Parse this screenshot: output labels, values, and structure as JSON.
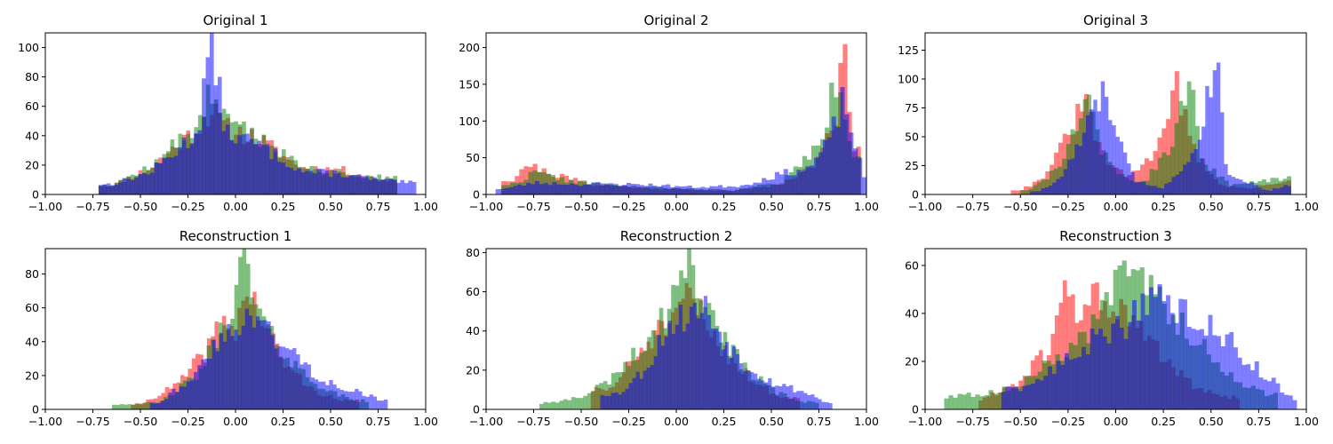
{
  "figure": {
    "colors": {
      "red": "#ff0000",
      "green": "#008000",
      "blue": "#0000ff",
      "alpha": 0.5
    }
  },
  "chart_data": [
    {
      "type": "histogram",
      "title": "Original 1",
      "xlim": [
        -1,
        1
      ],
      "ylim": [
        0,
        110
      ],
      "xticks": [
        "−1.00",
        "−0.75",
        "−0.50",
        "−0.25",
        "0.00",
        "0.25",
        "0.50",
        "0.75",
        "1.00"
      ],
      "yticks": [
        0,
        20,
        40,
        60,
        80,
        100
      ],
      "series": [
        {
          "color": "red",
          "peaks": [
            [
              -0.65,
              6
            ],
            [
              -0.45,
              18
            ],
            [
              -0.2,
              45
            ],
            [
              -0.13,
              58
            ],
            [
              -0.05,
              45
            ],
            [
              0.12,
              38
            ],
            [
              0.35,
              18
            ],
            [
              0.55,
              17
            ],
            [
              0.75,
              10
            ]
          ],
          "range": [
            -0.72,
            0.85
          ],
          "bins": 75,
          "seed": 11
        },
        {
          "color": "green",
          "peaks": [
            [
              -0.65,
              7
            ],
            [
              -0.45,
              18
            ],
            [
              -0.2,
              48
            ],
            [
              -0.13,
              72
            ],
            [
              -0.05,
              48
            ],
            [
              0.12,
              40
            ],
            [
              0.35,
              18
            ],
            [
              0.55,
              15
            ],
            [
              0.75,
              12
            ]
          ],
          "range": [
            -0.72,
            0.85
          ],
          "bins": 75,
          "seed": 12
        },
        {
          "color": "blue",
          "peaks": [
            [
              -0.65,
              7
            ],
            [
              -0.45,
              15
            ],
            [
              -0.2,
              42
            ],
            [
              -0.13,
              105
            ],
            [
              -0.05,
              42
            ],
            [
              0.12,
              34
            ],
            [
              0.35,
              16
            ],
            [
              0.55,
              14
            ],
            [
              0.75,
              10
            ],
            [
              0.9,
              8
            ]
          ],
          "range": [
            -0.72,
            0.95
          ],
          "bins": 80,
          "seed": 13
        }
      ]
    },
    {
      "type": "histogram",
      "title": "Original 2",
      "xlim": [
        -1,
        1
      ],
      "ylim": [
        0,
        220
      ],
      "xticks": [
        "−1.00",
        "−0.75",
        "−0.50",
        "−0.25",
        "0.00",
        "0.25",
        "0.50",
        "0.75",
        "1.00"
      ],
      "yticks": [
        0,
        50,
        100,
        150,
        200
      ],
      "series": [
        {
          "color": "red",
          "peaks": [
            [
              -0.85,
              20
            ],
            [
              -0.8,
              42
            ],
            [
              -0.65,
              28
            ],
            [
              -0.45,
              14
            ],
            [
              -0.1,
              8
            ],
            [
              0.3,
              5
            ],
            [
              0.55,
              14
            ],
            [
              0.75,
              45
            ],
            [
              0.85,
              120
            ],
            [
              0.88,
              210
            ],
            [
              0.93,
              70
            ]
          ],
          "range": [
            -0.92,
            0.97
          ],
          "bins": 80,
          "seed": 21
        },
        {
          "color": "green",
          "peaks": [
            [
              -0.85,
              14
            ],
            [
              -0.75,
              30
            ],
            [
              -0.55,
              18
            ],
            [
              -0.3,
              12
            ],
            [
              0.0,
              8
            ],
            [
              0.3,
              6
            ],
            [
              0.55,
              16
            ],
            [
              0.75,
              65
            ],
            [
              0.82,
              135
            ],
            [
              0.86,
              150
            ],
            [
              0.93,
              60
            ]
          ],
          "range": [
            -0.92,
            0.97
          ],
          "bins": 80,
          "seed": 22
        },
        {
          "color": "blue",
          "peaks": [
            [
              -0.9,
              8
            ],
            [
              -0.75,
              16
            ],
            [
              -0.5,
              14
            ],
            [
              -0.2,
              14
            ],
            [
              0.1,
              10
            ],
            [
              0.35,
              12
            ],
            [
              0.55,
              28
            ],
            [
              0.7,
              36
            ],
            [
              0.8,
              70
            ],
            [
              0.88,
              130
            ],
            [
              0.95,
              60
            ],
            [
              1.0,
              8
            ]
          ],
          "range": [
            -0.95,
            1.0
          ],
          "bins": 85,
          "seed": 23
        }
      ]
    },
    {
      "type": "histogram",
      "title": "Original 3",
      "xlim": [
        -1,
        1
      ],
      "ylim": [
        0,
        140
      ],
      "xticks": [
        "−1.00",
        "−0.75",
        "−0.50",
        "−0.25",
        "0.00",
        "0.25",
        "0.50",
        "0.75",
        "1.00"
      ],
      "yticks": [
        0,
        25,
        50,
        75,
        100,
        125
      ],
      "series": [
        {
          "color": "red",
          "peaks": [
            [
              -0.5,
              4
            ],
            [
              -0.4,
              12
            ],
            [
              -0.3,
              35
            ],
            [
              -0.22,
              62
            ],
            [
              -0.15,
              80
            ],
            [
              -0.08,
              35
            ],
            [
              0.05,
              15
            ],
            [
              0.18,
              30
            ],
            [
              0.25,
              62
            ],
            [
              0.32,
              96
            ],
            [
              0.4,
              40
            ],
            [
              0.55,
              8
            ],
            [
              0.7,
              5
            ],
            [
              0.88,
              12
            ]
          ],
          "range": [
            -0.55,
            0.92
          ],
          "bins": 65,
          "seed": 31
        },
        {
          "color": "green",
          "peaks": [
            [
              -0.45,
              4
            ],
            [
              -0.3,
              22
            ],
            [
              -0.2,
              60
            ],
            [
              -0.15,
              92
            ],
            [
              -0.1,
              50
            ],
            [
              0.0,
              18
            ],
            [
              0.15,
              10
            ],
            [
              0.28,
              40
            ],
            [
              0.35,
              80
            ],
            [
              0.4,
              98
            ],
            [
              0.45,
              30
            ],
            [
              0.6,
              8
            ],
            [
              0.88,
              14
            ]
          ],
          "range": [
            -0.5,
            0.92
          ],
          "bins": 65,
          "seed": 32
        },
        {
          "color": "blue",
          "peaks": [
            [
              -0.4,
              3
            ],
            [
              -0.3,
              12
            ],
            [
              -0.2,
              40
            ],
            [
              -0.12,
              70
            ],
            [
              -0.05,
              91
            ],
            [
              0.0,
              52
            ],
            [
              0.1,
              12
            ],
            [
              0.25,
              6
            ],
            [
              0.35,
              22
            ],
            [
              0.45,
              58
            ],
            [
              0.5,
              98
            ],
            [
              0.53,
              134
            ],
            [
              0.58,
              20
            ],
            [
              0.8,
              3
            ],
            [
              0.9,
              8
            ]
          ],
          "range": [
            -0.45,
            0.92
          ],
          "bins": 70,
          "seed": 33
        }
      ]
    },
    {
      "type": "histogram",
      "title": "Reconstruction 1",
      "xlim": [
        -1,
        1
      ],
      "ylim": [
        0,
        95
      ],
      "xticks": [
        "−1.00",
        "−0.75",
        "−0.50",
        "−0.25",
        "0.00",
        "0.25",
        "0.50",
        "0.75",
        "1.00"
      ],
      "yticks": [
        0,
        20,
        40,
        60,
        80
      ],
      "series": [
        {
          "color": "red",
          "peaks": [
            [
              -0.5,
              3
            ],
            [
              -0.3,
              15
            ],
            [
              -0.15,
              35
            ],
            [
              -0.08,
              50
            ],
            [
              0.0,
              48
            ],
            [
              0.05,
              70
            ],
            [
              0.12,
              58
            ],
            [
              0.25,
              28
            ],
            [
              0.4,
              12
            ],
            [
              0.55,
              5
            ]
          ],
          "range": [
            -0.55,
            0.65
          ],
          "bins": 60,
          "seed": 41
        },
        {
          "color": "green",
          "peaks": [
            [
              -0.6,
              3
            ],
            [
              -0.4,
              4
            ],
            [
              -0.2,
              20
            ],
            [
              -0.05,
              52
            ],
            [
              0.05,
              90
            ],
            [
              0.1,
              62
            ],
            [
              0.2,
              40
            ],
            [
              0.35,
              22
            ],
            [
              0.5,
              10
            ],
            [
              0.65,
              5
            ]
          ],
          "range": [
            -0.65,
            0.7
          ],
          "bins": 65,
          "seed": 42
        },
        {
          "color": "blue",
          "peaks": [
            [
              -0.4,
              4
            ],
            [
              -0.2,
              22
            ],
            [
              -0.05,
              45
            ],
            [
              0.05,
              55
            ],
            [
              0.15,
              50
            ],
            [
              0.25,
              38
            ],
            [
              0.35,
              28
            ],
            [
              0.45,
              18
            ],
            [
              0.6,
              12
            ],
            [
              0.75,
              6
            ]
          ],
          "range": [
            -0.45,
            0.8
          ],
          "bins": 65,
          "seed": 43
        }
      ]
    },
    {
      "type": "histogram",
      "title": "Reconstruction 2",
      "xlim": [
        -1,
        1
      ],
      "ylim": [
        0,
        82
      ],
      "xticks": [
        "−1.00",
        "−0.75",
        "−0.50",
        "−0.25",
        "0.00",
        "0.25",
        "0.50",
        "0.75",
        "1.00"
      ],
      "yticks": [
        0,
        20,
        40,
        60,
        80
      ],
      "series": [
        {
          "color": "red",
          "peaks": [
            [
              -0.35,
              10
            ],
            [
              -0.2,
              28
            ],
            [
              -0.1,
              40
            ],
            [
              0.0,
              44
            ],
            [
              0.05,
              60
            ],
            [
              0.12,
              50
            ],
            [
              0.25,
              30
            ],
            [
              0.4,
              15
            ],
            [
              0.55,
              6
            ]
          ],
          "range": [
            -0.45,
            0.65
          ],
          "bins": 60,
          "seed": 51
        },
        {
          "color": "green",
          "peaks": [
            [
              -0.7,
              3
            ],
            [
              -0.5,
              6
            ],
            [
              -0.3,
              18
            ],
            [
              -0.1,
              42
            ],
            [
              0.0,
              58
            ],
            [
              0.05,
              78
            ],
            [
              0.1,
              66
            ],
            [
              0.2,
              45
            ],
            [
              0.35,
              22
            ],
            [
              0.5,
              10
            ],
            [
              0.65,
              4
            ]
          ],
          "range": [
            -0.72,
            0.75
          ],
          "bins": 70,
          "seed": 52
        },
        {
          "color": "blue",
          "peaks": [
            [
              -0.3,
              8
            ],
            [
              -0.15,
              22
            ],
            [
              -0.05,
              42
            ],
            [
              0.05,
              48
            ],
            [
              0.15,
              52
            ],
            [
              0.25,
              36
            ],
            [
              0.35,
              24
            ],
            [
              0.5,
              14
            ],
            [
              0.7,
              8
            ],
            [
              0.8,
              3
            ]
          ],
          "range": [
            -0.4,
            0.82
          ],
          "bins": 65,
          "seed": 53
        }
      ]
    },
    {
      "type": "histogram",
      "title": "Reconstruction 3",
      "xlim": [
        -1,
        1
      ],
      "ylim": [
        0,
        67
      ],
      "xticks": [
        "−1.00",
        "−0.75",
        "−0.50",
        "−0.25",
        "0.00",
        "0.25",
        "0.50",
        "0.75",
        "1.00"
      ],
      "yticks": [
        0,
        20,
        40,
        60
      ],
      "series": [
        {
          "color": "red",
          "peaks": [
            [
              -0.7,
              4
            ],
            [
              -0.5,
              12
            ],
            [
              -0.35,
              25
            ],
            [
              -0.25,
              52
            ],
            [
              -0.2,
              40
            ],
            [
              -0.1,
              48
            ],
            [
              0.0,
              42
            ],
            [
              0.1,
              35
            ],
            [
              0.25,
              22
            ],
            [
              0.4,
              10
            ],
            [
              0.55,
              5
            ]
          ],
          "range": [
            -0.72,
            0.65
          ],
          "bins": 65,
          "seed": 61
        },
        {
          "color": "green",
          "peaks": [
            [
              -0.88,
              5
            ],
            [
              -0.65,
              7
            ],
            [
              -0.5,
              10
            ],
            [
              -0.3,
              22
            ],
            [
              -0.1,
              35
            ],
            [
              0.0,
              55
            ],
            [
              0.1,
              64
            ],
            [
              0.2,
              50
            ],
            [
              0.35,
              35
            ],
            [
              0.5,
              22
            ],
            [
              0.65,
              12
            ],
            [
              0.8,
              6
            ]
          ],
          "range": [
            -0.9,
            0.85
          ],
          "bins": 75,
          "seed": 62
        },
        {
          "color": "blue",
          "peaks": [
            [
              -0.5,
              8
            ],
            [
              -0.3,
              18
            ],
            [
              -0.1,
              30
            ],
            [
              0.05,
              35
            ],
            [
              0.15,
              48
            ],
            [
              0.3,
              42
            ],
            [
              0.45,
              38
            ],
            [
              0.55,
              32
            ],
            [
              0.7,
              20
            ],
            [
              0.85,
              10
            ],
            [
              0.93,
              4
            ]
          ],
          "range": [
            -0.6,
            0.95
          ],
          "bins": 70,
          "seed": 63
        }
      ]
    }
  ]
}
